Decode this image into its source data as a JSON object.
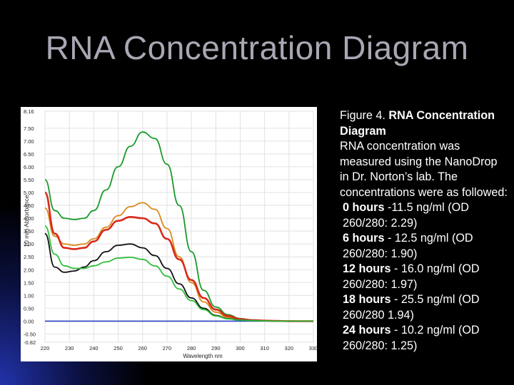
{
  "slide": {
    "title": "RNA Concentration Diagram"
  },
  "caption": {
    "figure_label": "Figure 4.",
    "figure_title": "RNA Concentration Diagram",
    "description": "RNA concentration was measured using the NanoDrop in Dr. Norton’s lab.  The concentrations were as followed:",
    "samples": [
      {
        "time": "0 hours",
        "text": " -11.5 ng/ml (OD 260/280: 2.29)"
      },
      {
        "time": "6 hours",
        "text": " - 12.5 ng/ml (OD 260/280: 1.90)"
      },
      {
        "time": "12 hours",
        "text": " - 16.0 ng/ml (OD 260/280: 1.97)"
      },
      {
        "time": "18 hours",
        "text": " - 25.5 ng/ml (OD 260/280 1.94)"
      },
      {
        "time": "24 hours",
        "text": " - 10.2 ng/ml (OD 260/280: 1.25)"
      }
    ]
  },
  "chart_data": {
    "type": "line",
    "title": "",
    "xlabel": "Wavelength nm",
    "ylabel": "10 mm Absorbance",
    "xlim": [
      220,
      330
    ],
    "ylim": [
      -0.82,
      8.16
    ],
    "x_ticks": [
      "220",
      "230",
      "240",
      "250",
      "260",
      "270",
      "280",
      "290",
      "300",
      "310",
      "320",
      "330"
    ],
    "y_ticks": [
      "8.16",
      "7.50",
      "7.00",
      "6.50",
      "6.00",
      "5.50",
      "5.00",
      "4.50",
      "4.00",
      "3.50",
      "3.00",
      "2.50",
      "2.00",
      "1.50",
      "1.00",
      "0.50",
      "0.00",
      "-0.50",
      "-0.82"
    ],
    "y_tick_values": [
      8.16,
      7.5,
      7.0,
      6.5,
      6.0,
      5.5,
      5.0,
      4.5,
      4.0,
      3.5,
      3.0,
      2.5,
      2.0,
      1.5,
      1.0,
      0.5,
      0.0,
      -0.5,
      -0.82
    ],
    "grid": true,
    "baseline_color": "#2a3fc4",
    "series": [
      {
        "name": "green-high",
        "color": "#1a9a2a",
        "x": [
          220,
          224,
          228,
          232,
          236,
          240,
          245,
          250,
          255,
          260,
          265,
          270,
          275,
          280,
          285,
          290,
          295,
          300,
          305,
          310,
          315,
          320,
          325,
          330
        ],
        "y": [
          5.5,
          4.3,
          4.0,
          3.95,
          4.0,
          4.3,
          5.1,
          6.0,
          6.8,
          7.35,
          7.1,
          6.1,
          4.5,
          2.7,
          1.2,
          0.55,
          0.25,
          0.1,
          0.04,
          0.02,
          0.01,
          0.01,
          0.0,
          0.0
        ]
      },
      {
        "name": "orange",
        "color": "#d98a1c",
        "x": [
          220,
          224,
          228,
          232,
          236,
          240,
          245,
          250,
          255,
          260,
          265,
          270,
          275,
          280,
          285,
          290,
          295,
          300,
          305,
          310,
          315,
          320,
          325,
          330
        ],
        "y": [
          4.4,
          3.3,
          3.0,
          2.95,
          3.0,
          3.2,
          3.65,
          4.1,
          4.45,
          4.6,
          4.35,
          3.6,
          2.5,
          1.5,
          0.75,
          0.35,
          0.15,
          0.06,
          0.03,
          0.02,
          0.01,
          0.0,
          0.0,
          0.0
        ]
      },
      {
        "name": "red",
        "color": "#d82a1c",
        "x": [
          220,
          224,
          228,
          232,
          236,
          240,
          245,
          250,
          255,
          260,
          265,
          270,
          275,
          280,
          285,
          290,
          295,
          300,
          305,
          310,
          315,
          320,
          325,
          330
        ],
        "y": [
          5.0,
          3.4,
          2.85,
          2.8,
          2.85,
          3.1,
          3.55,
          3.9,
          4.05,
          4.0,
          3.8,
          3.2,
          2.4,
          1.6,
          0.9,
          0.45,
          0.2,
          0.08,
          0.04,
          0.02,
          0.01,
          0.0,
          0.0,
          0.0
        ]
      },
      {
        "name": "black",
        "color": "#111111",
        "x": [
          220,
          224,
          228,
          232,
          236,
          240,
          245,
          250,
          255,
          260,
          265,
          270,
          275,
          280,
          285,
          290,
          295,
          300,
          305,
          310,
          315,
          320,
          325,
          330
        ],
        "y": [
          3.4,
          2.1,
          1.9,
          1.95,
          2.1,
          2.35,
          2.7,
          2.95,
          3.0,
          2.85,
          2.55,
          2.05,
          1.45,
          0.9,
          0.5,
          0.22,
          0.1,
          0.04,
          0.02,
          0.01,
          0.0,
          0.0,
          0.0,
          0.0
        ]
      },
      {
        "name": "green-low",
        "color": "#2cbf3a",
        "x": [
          220,
          224,
          228,
          232,
          236,
          240,
          245,
          250,
          255,
          260,
          265,
          270,
          275,
          280,
          285,
          290,
          295,
          300,
          305,
          310,
          315,
          320,
          325,
          330
        ],
        "y": [
          3.7,
          2.6,
          2.15,
          2.05,
          2.05,
          2.15,
          2.3,
          2.45,
          2.48,
          2.4,
          2.15,
          1.75,
          1.25,
          0.8,
          0.45,
          0.2,
          0.09,
          0.04,
          0.02,
          0.01,
          0.0,
          0.0,
          0.0,
          0.0
        ]
      }
    ]
  }
}
